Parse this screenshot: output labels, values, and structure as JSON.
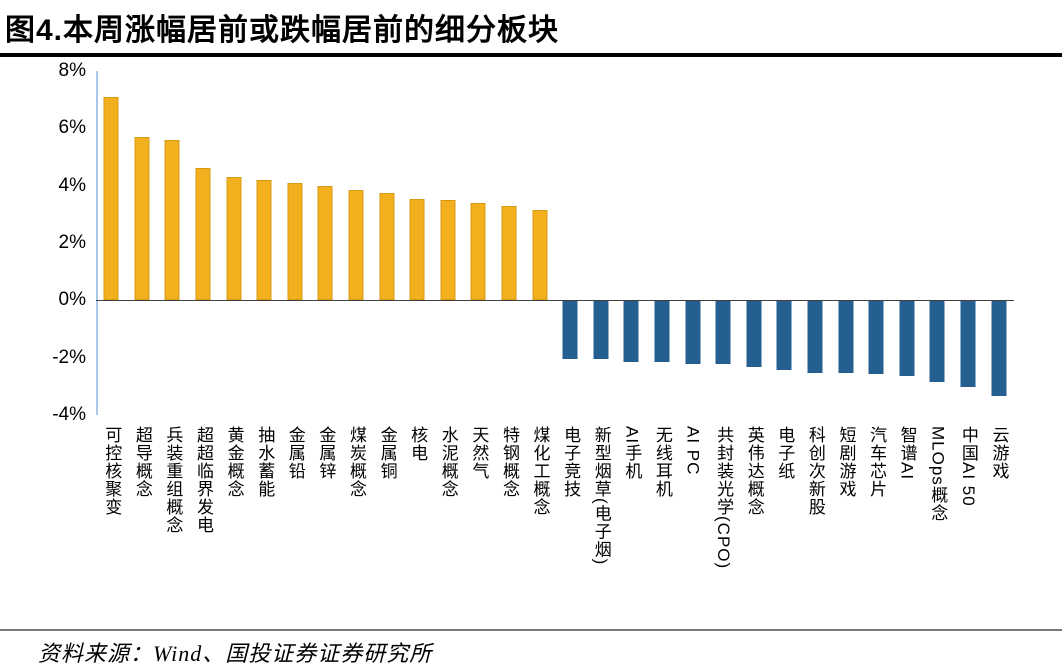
{
  "title": "图4.本周涨幅居前或跌幅居前的细分板块",
  "source": "资料来源：Wind、国投证券证券研究所",
  "chart_data": {
    "type": "bar",
    "title": "本周涨幅居前或跌幅居前的细分板块",
    "categories": [
      "可控核聚变",
      "超导概念",
      "兵装重组概念",
      "超超临界发电",
      "黄金概念",
      "抽水蓄能",
      "金属铅",
      "金属锌",
      "煤炭概念",
      "金属铜",
      "核电",
      "水泥概念",
      "天然气",
      "特钢概念",
      "煤化工概念",
      "电子竞技",
      "新型烟草(电子烟)",
      "AI手机",
      "无线耳机",
      "AI PC",
      "共封装光学(CPO)",
      "英伟达概念",
      "电子纸",
      "科创次新股",
      "短剧游戏",
      "汽车芯片",
      "智谱AI",
      "MLOps概念",
      "中国AI 50",
      "云游戏"
    ],
    "values": [
      7.1,
      5.7,
      5.6,
      4.6,
      4.3,
      4.2,
      4.1,
      4.0,
      3.85,
      3.75,
      3.55,
      3.5,
      3.4,
      3.3,
      3.15,
      -2.0,
      -2.0,
      -2.1,
      -2.1,
      -2.2,
      -2.2,
      -2.3,
      -2.4,
      -2.5,
      -2.5,
      -2.55,
      -2.6,
      -2.8,
      -3.0,
      -3.3
    ],
    "ylabel": "",
    "xlabel": "",
    "ylim": [
      -4,
      8
    ],
    "ytick_values": [
      8,
      6,
      4,
      2,
      0,
      -2,
      -4
    ],
    "ytick_labels": [
      "8%",
      "6%",
      "4%",
      "2%",
      "0%",
      "-2%",
      "-4%"
    ],
    "grid": false,
    "legend_position": "none",
    "positive_color": "#F2B01E",
    "positive_border": "#D79A12",
    "negative_color": "#255E91",
    "axis_line_color": "#A9C7E9"
  }
}
